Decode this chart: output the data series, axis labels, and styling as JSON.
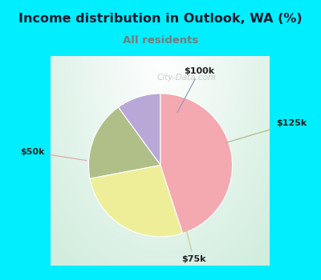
{
  "title": "Income distribution in Outlook, WA (%)",
  "subtitle": "All residents",
  "title_color": "#1a1a2e",
  "subtitle_color": "#7a7a7a",
  "bg_cyan": "#00eeff",
  "slices": [
    {
      "label": "$100k",
      "value": 10,
      "color": "#b8a8d8"
    },
    {
      "label": "$125k",
      "value": 18,
      "color": "#b0be88"
    },
    {
      "label": "$75k",
      "value": 27,
      "color": "#eeee99"
    },
    {
      "label": "$50k",
      "value": 45,
      "color": "#f4a8b0"
    }
  ],
  "startangle": 90,
  "watermark": "City-Data.com",
  "label_arrow_color_100k": "#9090cc",
  "label_arrow_color_125k": "#99aa77",
  "label_arrow_color_75k": "#cccc77",
  "label_arrow_color_50k": "#ddaaaa"
}
